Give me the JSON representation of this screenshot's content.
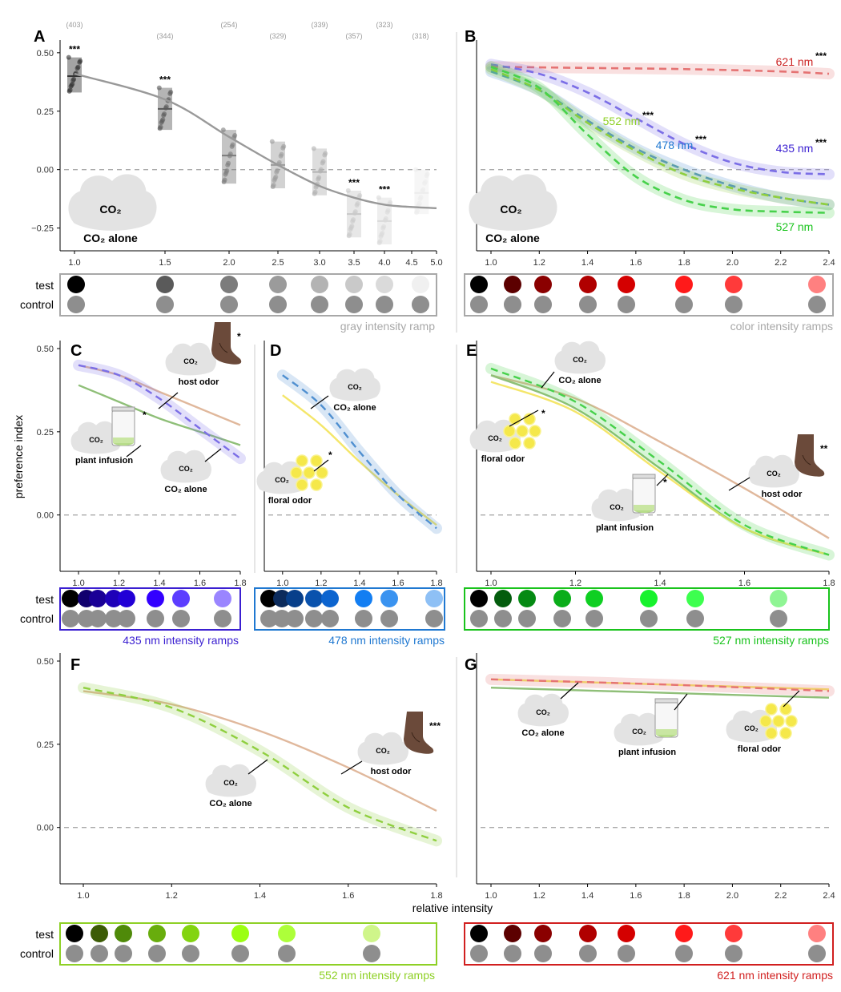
{
  "y_axis_label": "preference index",
  "x_axis_label": "relative intensity",
  "row_labels": {
    "test": "test",
    "control": "control"
  },
  "panels": {
    "A": {
      "letter": "A",
      "cloud_text": "CO",
      "cloud_sub": "2",
      "caption": "CO",
      "caption_sub": "2",
      "caption_rest": " alone",
      "ramp_label": "gray intensity ramp"
    },
    "B": {
      "letter": "B",
      "cloud_text": "CO",
      "cloud_sub": "2",
      "caption": "CO",
      "caption_sub": "2",
      "caption_rest": " alone",
      "ramp_label": "color intensity ramps"
    },
    "C": {
      "letter": "C",
      "ramp_label": "435 nm intensity ramps",
      "labels": {
        "host": "host odor",
        "plant": "plant infusion",
        "co2": "CO₂ alone"
      }
    },
    "D": {
      "letter": "D",
      "ramp_label": "478 nm intensity ramps",
      "labels": {
        "floral": "floral odor",
        "co2": "CO₂ alone"
      }
    },
    "E": {
      "letter": "E",
      "ramp_label": "527 nm intensity ramps",
      "labels": {
        "co2": "CO₂ alone",
        "floral": "floral odor",
        "plant": "plant infusion",
        "host": "host odor"
      }
    },
    "F": {
      "letter": "F",
      "ramp_label": "552 nm intensity ramps",
      "labels": {
        "co2": "CO₂ alone",
        "host": "host odor"
      }
    },
    "G": {
      "letter": "G",
      "ramp_label": "621 nm intensity ramps",
      "labels": {
        "co2": "CO₂ alone",
        "plant": "plant infusion",
        "floral": "floral odor"
      }
    }
  },
  "co2_small": "CO₂",
  "chart_data": [
    {
      "panel": "A",
      "type": "scatter",
      "xlabel": "",
      "ylabel": "",
      "x_ticks": [
        1.0,
        1.5,
        2.0,
        2.5,
        3.0,
        3.5,
        4.0,
        4.5,
        5.0
      ],
      "y_ticks": [
        "0.50",
        "0.25",
        "0.00",
        "−0.25"
      ],
      "ylim": [
        -0.32,
        0.52
      ],
      "xlim": [
        0.95,
        5.0
      ],
      "n_labels": [
        "(403)",
        "(344)",
        "(254)",
        "(329)",
        "(339)",
        "(357)",
        "(323)",
        "(318)"
      ],
      "groups": [
        {
          "x": 1.0,
          "median": 0.4,
          "lo": 0.33,
          "hi": 0.48,
          "sig": "***"
        },
        {
          "x": 1.5,
          "median": 0.26,
          "lo": 0.17,
          "hi": 0.35,
          "sig": "***"
        },
        {
          "x": 2.0,
          "median": 0.06,
          "lo": -0.06,
          "hi": 0.17,
          "sig": ""
        },
        {
          "x": 2.5,
          "median": 0.02,
          "lo": -0.08,
          "hi": 0.12,
          "sig": ""
        },
        {
          "x": 3.0,
          "median": -0.01,
          "lo": -0.11,
          "hi": 0.09,
          "sig": ""
        },
        {
          "x": 3.5,
          "median": -0.19,
          "lo": -0.29,
          "hi": -0.09,
          "sig": "***"
        },
        {
          "x": 4.0,
          "median": -0.22,
          "lo": -0.32,
          "hi": -0.12,
          "sig": "***"
        },
        {
          "x": 4.7,
          "median": -0.1,
          "lo": -0.19,
          "hi": 0.0,
          "sig": ""
        }
      ],
      "fit": {
        "x": [
          1.0,
          1.5,
          2.0,
          2.5,
          3.0,
          3.5,
          4.0,
          4.5,
          5.0
        ],
        "y": [
          0.41,
          0.3,
          0.14,
          0.02,
          -0.07,
          -0.12,
          -0.15,
          -0.16,
          -0.165
        ]
      },
      "ramp_test_colors": [
        "#000000",
        "#5a5a5a",
        "#7c7c7c",
        "#9b9b9b",
        "#b3b3b3",
        "#c9c9c9",
        "#dadada",
        "#f0f0f0"
      ]
    },
    {
      "panel": "B",
      "type": "line",
      "x_ticks": [
        1.0,
        1.2,
        1.4,
        1.6,
        1.8,
        2.0,
        2.2,
        2.4
      ],
      "xlim": [
        1.0,
        2.4
      ],
      "ylim": [
        -0.32,
        0.52
      ],
      "series": [
        {
          "name": "621 nm",
          "sig": "***",
          "color": "#e57373",
          "x": [
            1.0,
            1.4,
            1.8,
            2.2,
            2.4
          ],
          "y": [
            0.44,
            0.435,
            0.43,
            0.42,
            0.41
          ]
        },
        {
          "name": "435 nm",
          "sig": "***",
          "color": "#7b6ee6",
          "x": [
            1.0,
            1.2,
            1.4,
            1.6,
            1.8,
            2.0,
            2.2,
            2.4
          ],
          "y": [
            0.45,
            0.41,
            0.33,
            0.22,
            0.11,
            0.03,
            -0.01,
            -0.02
          ]
        },
        {
          "name": "478 nm",
          "sig": "***",
          "color": "#4f8fd0",
          "x": [
            1.0,
            1.2,
            1.4,
            1.6,
            1.8,
            2.0,
            2.2,
            2.4
          ],
          "y": [
            0.42,
            0.34,
            0.21,
            0.09,
            0.0,
            -0.07,
            -0.12,
            -0.15
          ]
        },
        {
          "name": "552 nm",
          "sig": "***",
          "color": "#8fcf3f",
          "x": [
            1.0,
            1.2,
            1.4,
            1.6,
            1.8,
            2.0,
            2.2,
            2.4
          ],
          "y": [
            0.43,
            0.34,
            0.2,
            0.08,
            -0.02,
            -0.08,
            -0.12,
            -0.15
          ]
        },
        {
          "name": "527 nm",
          "sig": "",
          "color": "#47d14b",
          "x": [
            1.0,
            1.2,
            1.4,
            1.6,
            1.8,
            2.0,
            2.2,
            2.4
          ],
          "y": [
            0.44,
            0.35,
            0.15,
            -0.03,
            -0.13,
            -0.17,
            -0.18,
            -0.185
          ]
        }
      ],
      "ramp_test_colors": [
        "#000000",
        "#5c0000",
        "#8a0000",
        "#b00000",
        "#d40000",
        "#ff1a1a",
        "#ff3a3a",
        "#ff8080"
      ]
    },
    {
      "panel": "C",
      "type": "line",
      "x_ticks": [
        1.0,
        1.2,
        1.4,
        1.6,
        1.8
      ],
      "y_ticks": [
        "0.50",
        "0.25",
        "0.00"
      ],
      "xlim": [
        1.0,
        1.8
      ],
      "ylim": [
        -0.15,
        0.5
      ],
      "series": [
        {
          "name": "host odor",
          "sig": "*",
          "color": "#e0b89c",
          "dash": false,
          "x": [
            1.0,
            1.2,
            1.4,
            1.6,
            1.8
          ],
          "y": [
            0.45,
            0.42,
            0.37,
            0.32,
            0.27
          ]
        },
        {
          "name": "plant infusion",
          "sig": "*",
          "color": "#8fbf78",
          "dash": false,
          "x": [
            1.0,
            1.2,
            1.4,
            1.6,
            1.8
          ],
          "y": [
            0.39,
            0.34,
            0.29,
            0.25,
            0.21
          ]
        },
        {
          "name": "CO₂ alone",
          "sig": "",
          "color": "#7b6ee6",
          "dash": true,
          "x": [
            1.0,
            1.2,
            1.4,
            1.6,
            1.8
          ],
          "y": [
            0.45,
            0.42,
            0.35,
            0.26,
            0.17
          ]
        }
      ],
      "ramp_test_colors": [
        "#000000",
        "#11006e",
        "#1a0096",
        "#1e00b8",
        "#2200d6",
        "#3300ff",
        "#5c3dff",
        "#9a85ff"
      ]
    },
    {
      "panel": "D",
      "type": "line",
      "x_ticks": [
        1.0,
        1.2,
        1.4,
        1.6,
        1.8
      ],
      "xlim": [
        1.0,
        1.8
      ],
      "ylim": [
        -0.15,
        0.5
      ],
      "series": [
        {
          "name": "floral odor",
          "sig": "*",
          "color": "#f4e66a",
          "dash": false,
          "x": [
            1.0,
            1.2,
            1.4,
            1.6,
            1.8
          ],
          "y": [
            0.36,
            0.27,
            0.16,
            0.06,
            -0.03
          ]
        },
        {
          "name": "CO₂ alone",
          "sig": "",
          "color": "#4f8fd0",
          "dash": true,
          "x": [
            1.0,
            1.2,
            1.4,
            1.6,
            1.8
          ],
          "y": [
            0.42,
            0.33,
            0.19,
            0.06,
            -0.04
          ]
        }
      ],
      "ramp_test_colors": [
        "#000000",
        "#0c2b5c",
        "#073f8a",
        "#0a52ad",
        "#0c64cf",
        "#137ef2",
        "#3a93f0",
        "#8ec0f5"
      ]
    },
    {
      "panel": "E",
      "type": "line",
      "x_ticks": [
        1.0,
        1.2,
        1.4,
        1.6,
        1.8
      ],
      "xlim": [
        1.0,
        1.8
      ],
      "ylim": [
        -0.15,
        0.5
      ],
      "series": [
        {
          "name": "host odor",
          "sig": "**",
          "color": "#e0b89c",
          "dash": false,
          "x": [
            1.0,
            1.2,
            1.4,
            1.6,
            1.8
          ],
          "y": [
            0.42,
            0.35,
            0.22,
            0.08,
            -0.07
          ]
        },
        {
          "name": "plant infusion",
          "sig": "*",
          "color": "#8fbf78",
          "dash": false,
          "x": [
            1.0,
            1.2,
            1.4,
            1.6,
            1.8
          ],
          "y": [
            0.42,
            0.32,
            0.14,
            -0.04,
            -0.12
          ]
        },
        {
          "name": "floral odor",
          "sig": "*",
          "color": "#f4e66a",
          "dash": false,
          "x": [
            1.0,
            1.2,
            1.4,
            1.6,
            1.8
          ],
          "y": [
            0.4,
            0.31,
            0.13,
            -0.04,
            -0.12
          ]
        },
        {
          "name": "CO₂ alone",
          "sig": "",
          "color": "#47d14b",
          "dash": true,
          "x": [
            1.0,
            1.2,
            1.4,
            1.6,
            1.8
          ],
          "y": [
            0.44,
            0.34,
            0.16,
            -0.03,
            -0.12
          ]
        }
      ],
      "ramp_test_colors": [
        "#000000",
        "#035c0d",
        "#058a13",
        "#0aad1a",
        "#0fcf22",
        "#17f22d",
        "#3dff4f",
        "#8ff594"
      ]
    },
    {
      "panel": "F",
      "type": "line",
      "x_ticks": [
        1.0,
        1.2,
        1.4,
        1.6,
        1.8
      ],
      "y_ticks": [
        "0.50",
        "0.25",
        "0.00"
      ],
      "xlim": [
        0.98,
        1.8
      ],
      "ylim": [
        -0.15,
        0.5
      ],
      "series": [
        {
          "name": "host odor",
          "sig": "***",
          "color": "#e0b89c",
          "dash": false,
          "x": [
            1.0,
            1.2,
            1.4,
            1.6,
            1.8
          ],
          "y": [
            0.41,
            0.37,
            0.29,
            0.18,
            0.05
          ]
        },
        {
          "name": "CO₂ alone",
          "sig": "",
          "color": "#8fcf3f",
          "dash": true,
          "x": [
            1.0,
            1.2,
            1.4,
            1.6,
            1.8
          ],
          "y": [
            0.42,
            0.36,
            0.23,
            0.06,
            -0.04
          ]
        }
      ],
      "ramp_test_colors": [
        "#000000",
        "#3c5c05",
        "#4f8a09",
        "#68ad0d",
        "#83d410",
        "#9cff12",
        "#adff3a",
        "#cff58a"
      ]
    },
    {
      "panel": "G",
      "type": "line",
      "x_ticks": [
        1.0,
        1.2,
        1.4,
        1.6,
        1.8,
        2.0,
        2.2,
        2.4
      ],
      "xlim": [
        1.0,
        2.4
      ],
      "ylim": [
        -0.15,
        0.5
      ],
      "series": [
        {
          "name": "floral odor",
          "sig": "",
          "color": "#f4e66a",
          "dash": false,
          "x": [
            1.0,
            1.7,
            2.4
          ],
          "y": [
            0.445,
            0.43,
            0.415
          ]
        },
        {
          "name": "CO₂ alone",
          "sig": "",
          "color": "#e57373",
          "dash": true,
          "x": [
            1.0,
            1.7,
            2.4
          ],
          "y": [
            0.445,
            0.43,
            0.41
          ]
        },
        {
          "name": "plant infusion",
          "sig": "",
          "color": "#8fbf78",
          "dash": false,
          "x": [
            1.0,
            1.7,
            2.4
          ],
          "y": [
            0.42,
            0.405,
            0.39
          ]
        }
      ],
      "ramp_test_colors": [
        "#000000",
        "#5c0000",
        "#8a0000",
        "#b00000",
        "#d40000",
        "#ff1a1a",
        "#ff3a3a",
        "#ff8080"
      ]
    }
  ],
  "colors": {
    "axis": "#000000",
    "zero_line": "#aaaaaa",
    "cloud": "#e0e0e0",
    "control_dot": "#8e8e8e",
    "gray_box": "#a8a8a8",
    "purple": "#3a1fd1",
    "blue": "#1f78d1",
    "green": "#19c31c",
    "lime": "#8ed025",
    "red": "#d11f1f"
  }
}
